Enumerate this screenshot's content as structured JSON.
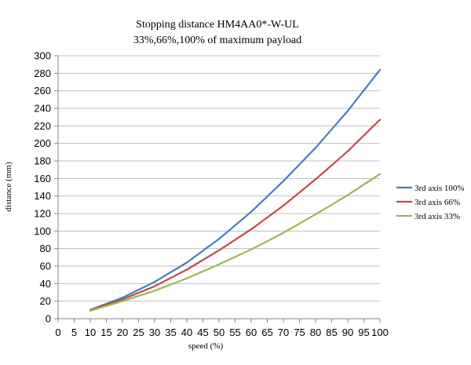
{
  "chart_data": {
    "type": "line",
    "title": "Stopping distance HM4AA0*-W-UL",
    "subtitle": "33%,66%,100% of maximum payload",
    "xlabel": "speed (%)",
    "ylabel": "distance (mm)",
    "xlim": [
      0,
      100
    ],
    "ylim": [
      0,
      300
    ],
    "x_ticks": [
      0,
      5,
      10,
      15,
      20,
      25,
      30,
      35,
      40,
      45,
      50,
      55,
      60,
      65,
      70,
      75,
      80,
      85,
      90,
      95,
      100
    ],
    "y_ticks": [
      0,
      20,
      40,
      60,
      80,
      100,
      120,
      140,
      160,
      180,
      200,
      220,
      240,
      260,
      280,
      300
    ],
    "grid": "horizontal",
    "legend_position": "right",
    "x": [
      10,
      20,
      30,
      40,
      50,
      60,
      70,
      80,
      90,
      100
    ],
    "series": [
      {
        "name": "3rd axis 100%",
        "color": "#4a7ebb",
        "values": [
          10,
          24,
          42,
          64,
          91,
          122,
          157,
          195,
          237,
          284
        ]
      },
      {
        "name": "3rd axis 66%",
        "color": "#be4b48",
        "values": [
          10,
          22,
          37,
          56,
          78,
          102,
          129,
          159,
          191,
          227
        ]
      },
      {
        "name": "3rd axis 33%",
        "color": "#98b954",
        "values": [
          9,
          20,
          32,
          46,
          62,
          79,
          98,
          119,
          141,
          165
        ]
      }
    ]
  }
}
